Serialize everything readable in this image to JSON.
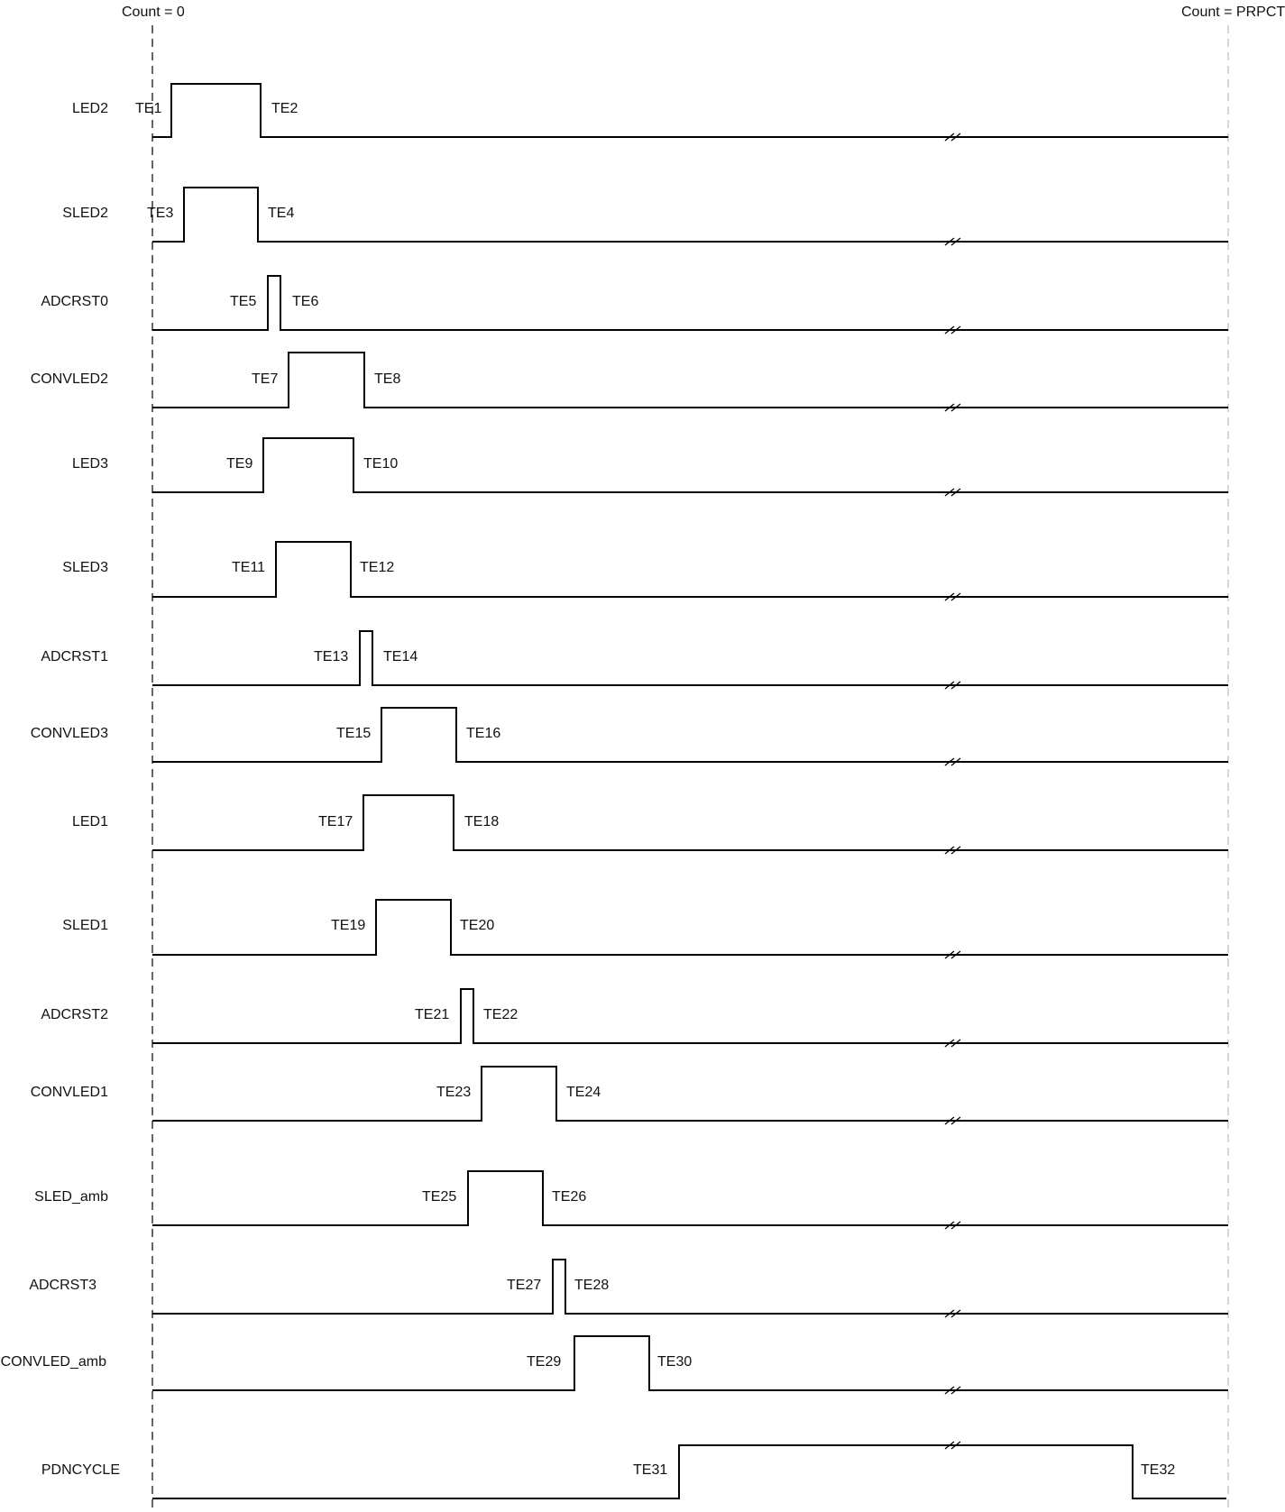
{
  "markers": {
    "start": "Count = 0",
    "end": "Count = PRPCT"
  },
  "colors": {
    "line": "#000000",
    "text": "#111111",
    "end_marker": "#bbbbbb"
  },
  "signals": [
    {
      "name": "LED2",
      "rise_label": "TE1",
      "fall_label": "TE2"
    },
    {
      "name": "SLED2",
      "rise_label": "TE3",
      "fall_label": "TE4"
    },
    {
      "name": "ADCRST0",
      "rise_label": "TE5",
      "fall_label": "TE6"
    },
    {
      "name": "CONVLED2",
      "rise_label": "TE7",
      "fall_label": "TE8"
    },
    {
      "name": "LED3",
      "rise_label": "TE9",
      "fall_label": "TE10"
    },
    {
      "name": "SLED3",
      "rise_label": "TE11",
      "fall_label": "TE12"
    },
    {
      "name": "ADCRST1",
      "rise_label": "TE13",
      "fall_label": "TE14"
    },
    {
      "name": "CONVLED3",
      "rise_label": "TE15",
      "fall_label": "TE16"
    },
    {
      "name": "LED1",
      "rise_label": "TE17",
      "fall_label": "TE18"
    },
    {
      "name": "SLED1",
      "rise_label": "TE19",
      "fall_label": "TE20"
    },
    {
      "name": "ADCRST2",
      "rise_label": "TE21",
      "fall_label": "TE22"
    },
    {
      "name": "CONVLED1",
      "rise_label": "TE23",
      "fall_label": "TE24"
    },
    {
      "name": "SLED_amb",
      "rise_label": "TE25",
      "fall_label": "TE26"
    },
    {
      "name": "ADCRST3",
      "rise_label": "TE27",
      "fall_label": "TE28"
    },
    {
      "name": "CONVLED_amb",
      "rise_label": "TE29",
      "fall_label": "TE30"
    },
    {
      "name": "PDNCYCLE",
      "rise_label": "TE31",
      "fall_label": "TE32"
    }
  ]
}
